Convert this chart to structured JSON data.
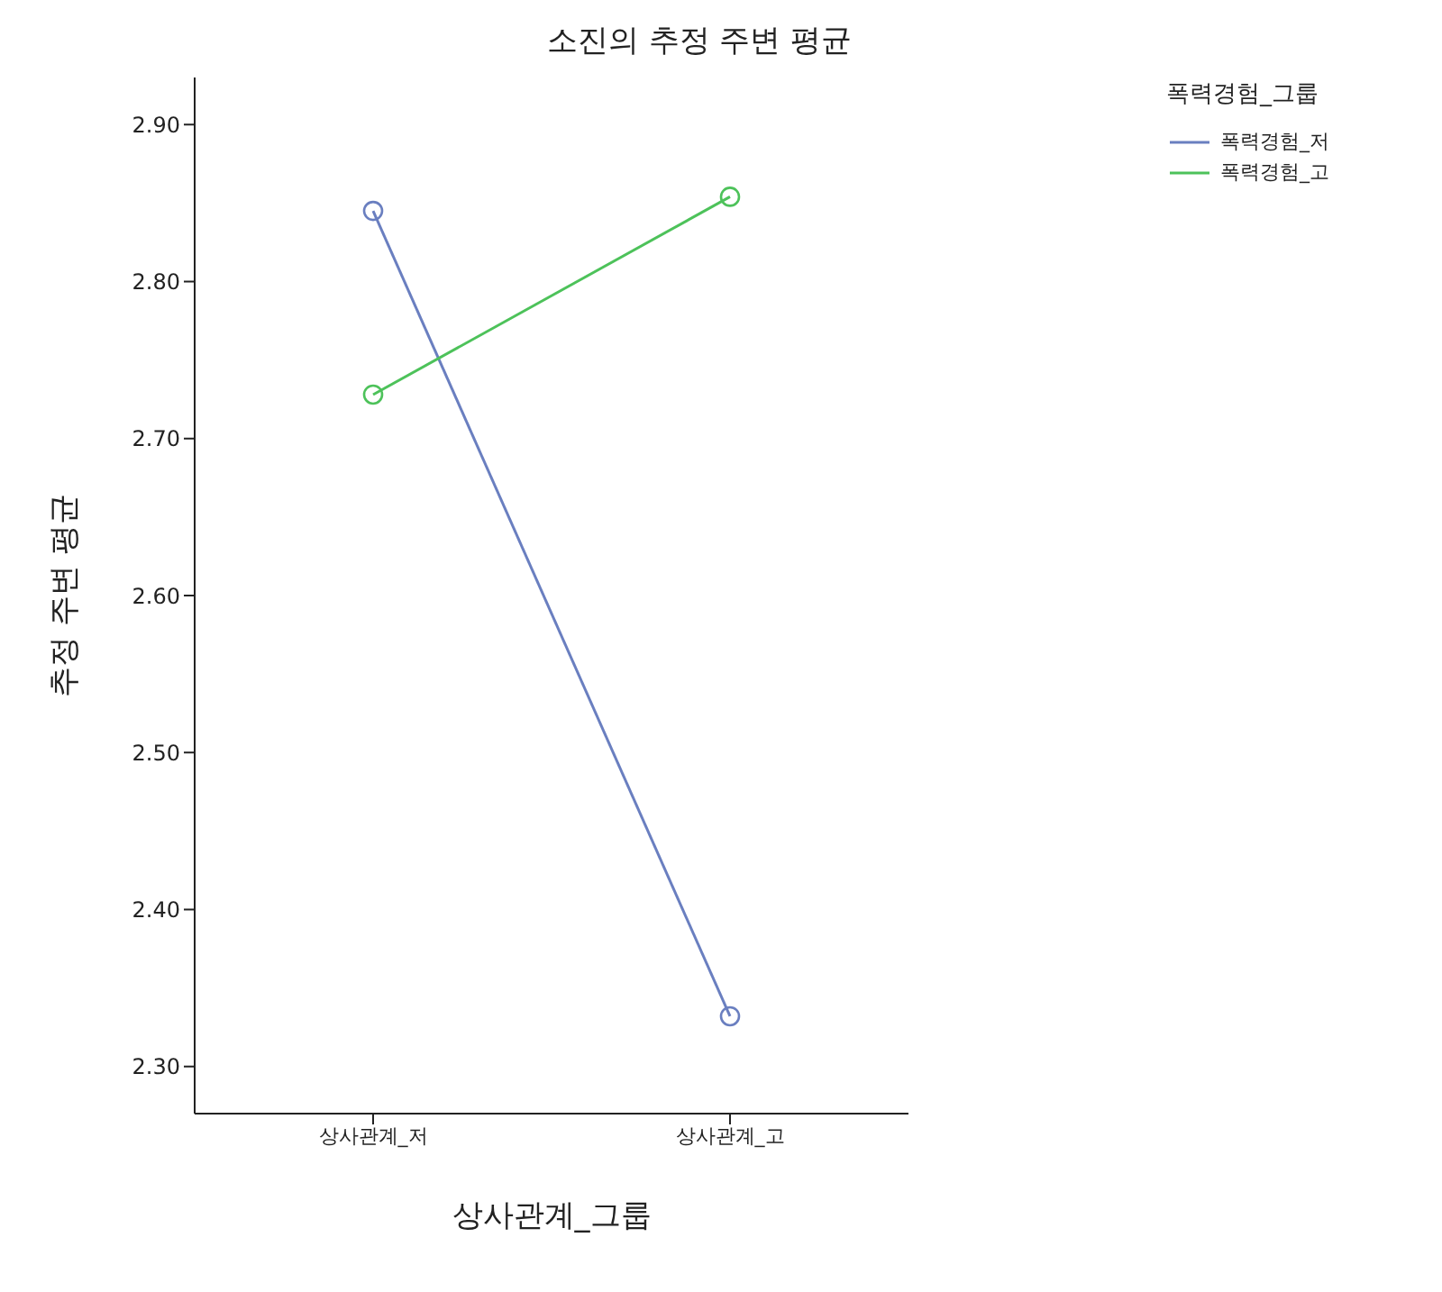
{
  "chart_data": {
    "type": "line",
    "title": "소진의 추정 주변 평균",
    "xlabel": "상사관계_그룹",
    "ylabel": "추정 주변 평균",
    "legend_title": "폭력경험_그룹",
    "categories": [
      "상사관계_저",
      "상사관계_고"
    ],
    "series": [
      {
        "name": "폭력경험_저",
        "color": "#6a7fc0",
        "values": [
          2.845,
          2.332
        ]
      },
      {
        "name": "폭력경험_고",
        "color": "#4dc25a",
        "values": [
          2.728,
          2.854
        ]
      }
    ],
    "ylim": [
      2.27,
      2.93
    ],
    "yticks": [
      {
        "value": 2.3,
        "label": "2.30"
      },
      {
        "value": 2.4,
        "label": "2.40"
      },
      {
        "value": 2.5,
        "label": "2.50"
      },
      {
        "value": 2.6,
        "label": "2.60"
      },
      {
        "value": 2.7,
        "label": "2.70"
      },
      {
        "value": 2.8,
        "label": "2.80"
      },
      {
        "value": 2.9,
        "label": "2.90"
      }
    ],
    "grid": false,
    "legend": "top right",
    "marker": "circle",
    "line_style": "solid"
  }
}
